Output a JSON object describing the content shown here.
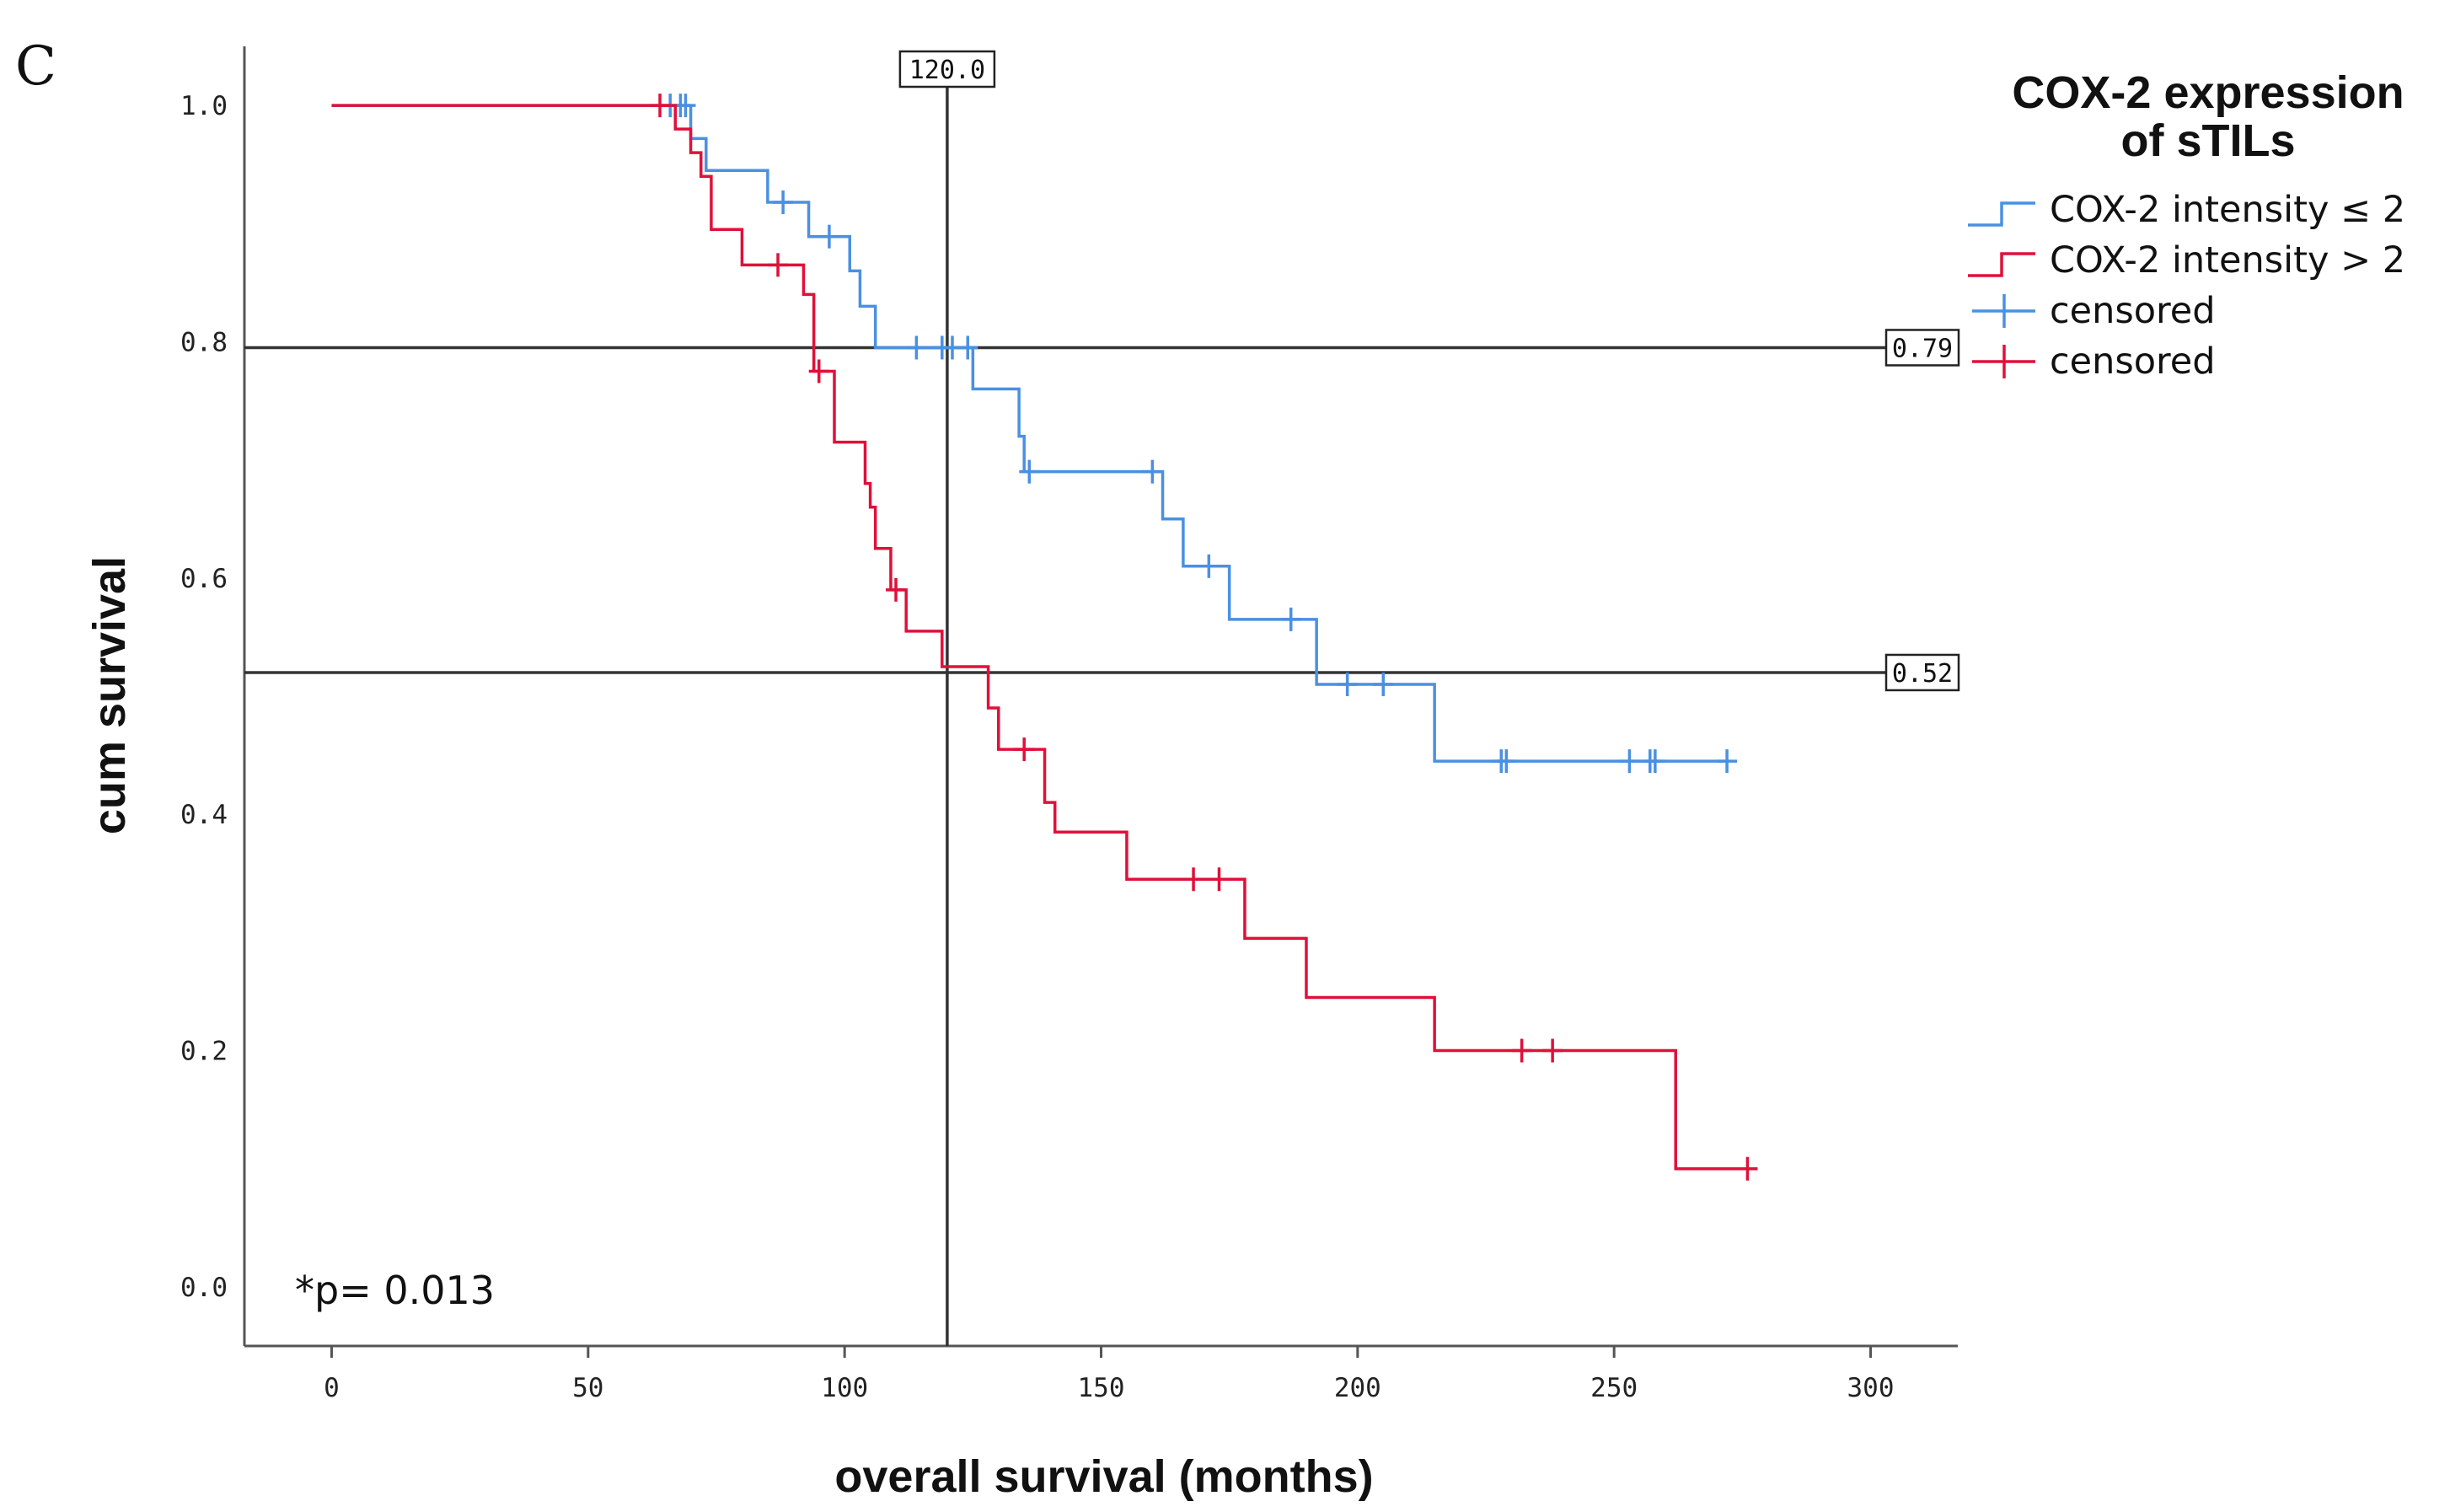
{
  "panel_label": "C",
  "colors": {
    "group_low": "#4a90e2",
    "group_high": "#e0103a",
    "ref_line": "#333333",
    "axis": "#555555"
  },
  "chart_data": {
    "type": "line",
    "subtype": "kaplan-meier",
    "xlabel": "overall survival (months)",
    "ylabel": "cum survival",
    "xlim": [
      -17,
      317
    ],
    "ylim": [
      -0.05,
      1.05
    ],
    "xticks": [
      0,
      50,
      100,
      150,
      200,
      250,
      300
    ],
    "yticks": [
      0.0,
      0.2,
      0.4,
      0.6,
      0.8,
      1.0
    ],
    "xtick_labels": [
      "0",
      "50",
      "100",
      "150",
      "200",
      "250",
      "300"
    ],
    "ytick_labels": [
      "0.0",
      "0.2",
      "0.4",
      "0.6",
      "0.8",
      "1.0"
    ],
    "legend": {
      "title_line1": "COX-2 expression",
      "title_line2": "of sTILs",
      "entries": [
        "COX-2 intensity ≤ 2",
        "COX-2 intensity > 2",
        "censored",
        "censored"
      ]
    },
    "reference_lines": {
      "vertical": {
        "x": 120,
        "label": "120.0"
      },
      "horizontal": [
        {
          "y": 0.795,
          "label": "0.79"
        },
        {
          "y": 0.52,
          "label": "0.52"
        }
      ]
    },
    "annotation": "*p= 0.013",
    "series": [
      {
        "name": "COX-2 intensity ≤ 2",
        "steps": [
          [
            0,
            1.0
          ],
          [
            70,
            0.972
          ],
          [
            73,
            0.945
          ],
          [
            85,
            0.918
          ],
          [
            93,
            0.889
          ],
          [
            101,
            0.86
          ],
          [
            103,
            0.83
          ],
          [
            106,
            0.795
          ],
          [
            125,
            0.76
          ],
          [
            134,
            0.72
          ],
          [
            135,
            0.69
          ],
          [
            162,
            0.65
          ],
          [
            166,
            0.61
          ],
          [
            175,
            0.565
          ],
          [
            192,
            0.51
          ],
          [
            215,
            0.445
          ],
          [
            272,
            0.445
          ]
        ],
        "censored": [
          66,
          68,
          69,
          88,
          97,
          114,
          119,
          121,
          124,
          136,
          160,
          171,
          187,
          198,
          205,
          228,
          229,
          253,
          257,
          258,
          272
        ]
      },
      {
        "name": "COX-2 intensity > 2",
        "steps": [
          [
            0,
            1.0
          ],
          [
            67,
            0.98
          ],
          [
            70,
            0.96
          ],
          [
            72,
            0.94
          ],
          [
            74,
            0.895
          ],
          [
            80,
            0.865
          ],
          [
            92,
            0.84
          ],
          [
            94,
            0.775
          ],
          [
            98,
            0.715
          ],
          [
            104,
            0.68
          ],
          [
            105,
            0.66
          ],
          [
            106,
            0.625
          ],
          [
            109,
            0.59
          ],
          [
            112,
            0.555
          ],
          [
            119,
            0.525
          ],
          [
            128,
            0.49
          ],
          [
            130,
            0.455
          ],
          [
            139,
            0.41
          ],
          [
            141,
            0.385
          ],
          [
            155,
            0.345
          ],
          [
            178,
            0.295
          ],
          [
            190,
            0.245
          ],
          [
            215,
            0.2
          ],
          [
            262,
            0.1
          ],
          [
            276,
            0.1
          ]
        ],
        "censored": [
          64,
          87,
          95,
          110,
          135,
          168,
          173,
          232,
          238,
          276
        ]
      }
    ]
  }
}
